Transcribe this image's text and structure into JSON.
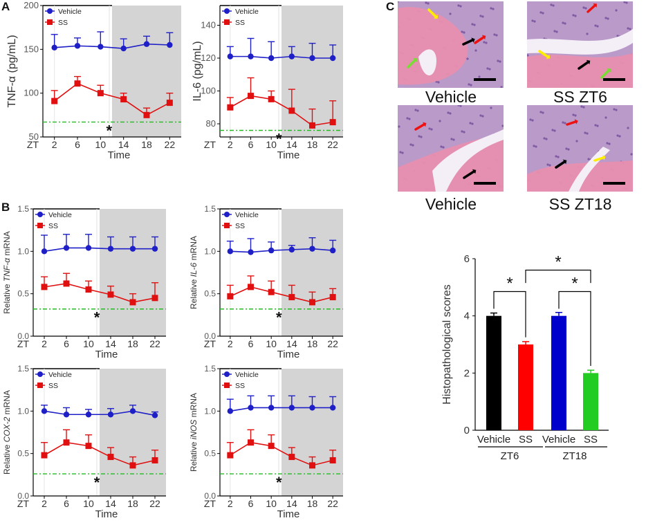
{
  "panels": {
    "A": "A",
    "B": "B",
    "C": "C"
  },
  "colors": {
    "vehicle": "#1f1fc8",
    "ss": "#e01010",
    "dark_shade": "#d4d4d4",
    "refline": "#22bb22",
    "bar_black": "#000000",
    "bar_red": "#ff0000",
    "bar_blue": "#0000cc",
    "bar_green": "#22cc22"
  },
  "legend": {
    "vehicle": "Vehicle",
    "ss": "SS"
  },
  "x_prefix": "ZT",
  "x_label": "Time",
  "x_ticks": [
    "2",
    "6",
    "10",
    "14",
    "18",
    "22"
  ],
  "star": "*",
  "histology": {
    "images": [
      {
        "label": "Vehicle",
        "arrows": [
          "yellow",
          "black",
          "red",
          "green"
        ]
      },
      {
        "label": "SS ZT6",
        "arrows": [
          "red",
          "yellow",
          "black",
          "green"
        ]
      },
      {
        "label": "Vehicle",
        "arrows": [
          "red",
          "black"
        ]
      },
      {
        "label": "SS ZT18",
        "arrows": [
          "red",
          "black",
          "yellow"
        ]
      }
    ]
  },
  "chart_data": [
    {
      "id": "tnf-protein",
      "type": "line",
      "ylabel": "TNF-α (pg/mL)",
      "ylim": [
        50,
        200
      ],
      "yticks": [
        "50",
        "100",
        "150",
        "200"
      ],
      "yticks_values": [
        50,
        100,
        150,
        200
      ],
      "dark_phase": [
        12,
        24
      ],
      "reference_line": 67,
      "x": [
        2,
        6,
        10,
        14,
        18,
        22
      ],
      "series": [
        {
          "name": "Vehicle",
          "values": [
            152,
            154,
            153,
            151,
            156,
            155
          ],
          "errors": [
            15,
            9,
            17,
            11,
            9,
            14
          ]
        },
        {
          "name": "SS",
          "values": [
            91,
            111,
            100,
            93,
            75,
            89
          ],
          "errors": [
            12,
            8,
            9,
            7,
            8,
            11
          ]
        }
      ]
    },
    {
      "id": "il6-protein",
      "type": "line",
      "ylabel": "IL-6 (pg/mL)",
      "ylim": [
        72,
        152
      ],
      "yticks": [
        "80",
        "100",
        "120",
        "140"
      ],
      "yticks_values": [
        80,
        100,
        120,
        140
      ],
      "dark_phase": [
        12,
        24
      ],
      "reference_line": 76,
      "x": [
        2,
        6,
        10,
        14,
        18,
        22
      ],
      "series": [
        {
          "name": "Vehicle",
          "values": [
            121,
            121,
            120,
            121,
            120,
            120
          ],
          "errors": [
            6,
            11,
            10,
            6,
            9,
            8
          ]
        },
        {
          "name": "SS",
          "values": [
            90,
            97,
            95,
            88,
            79,
            81
          ],
          "errors": [
            6,
            11,
            5,
            13,
            10,
            13
          ]
        }
      ]
    },
    {
      "id": "tnf-mrna",
      "type": "line",
      "ylabel_prefix": "Relative ",
      "ylabel_gene": "TNF-α",
      "ylabel_suffix": " mRNA",
      "ylim": [
        0,
        1.5
      ],
      "yticks": [
        "0.0",
        "0.5",
        "1.0",
        "1.5"
      ],
      "yticks_values": [
        0,
        0.5,
        1.0,
        1.5
      ],
      "dark_phase": [
        12,
        24
      ],
      "reference_line": 0.32,
      "x": [
        2,
        6,
        10,
        14,
        18,
        22
      ],
      "series": [
        {
          "name": "Vehicle",
          "values": [
            1.0,
            1.04,
            1.04,
            1.03,
            1.03,
            1.03
          ],
          "errors": [
            0.19,
            0.16,
            0.16,
            0.14,
            0.14,
            0.14
          ]
        },
        {
          "name": "SS",
          "values": [
            0.58,
            0.62,
            0.55,
            0.49,
            0.4,
            0.45
          ],
          "errors": [
            0.12,
            0.12,
            0.1,
            0.1,
            0.1,
            0.18
          ]
        }
      ]
    },
    {
      "id": "il6-mrna",
      "type": "line",
      "ylabel_prefix": "Relative ",
      "ylabel_gene": "IL-6",
      "ylabel_suffix": " mRNA",
      "ylim": [
        0,
        1.5
      ],
      "yticks": [
        "0.0",
        "0.5",
        "1.0",
        "1.5"
      ],
      "yticks_values": [
        0,
        0.5,
        1.0,
        1.5
      ],
      "dark_phase": [
        12,
        24
      ],
      "reference_line": 0.32,
      "x": [
        2,
        6,
        10,
        14,
        18,
        22
      ],
      "series": [
        {
          "name": "Vehicle",
          "values": [
            1.0,
            0.99,
            1.01,
            1.02,
            1.03,
            1.01
          ],
          "errors": [
            0.12,
            0.16,
            0.1,
            0.05,
            0.13,
            0.12
          ]
        },
        {
          "name": "SS",
          "values": [
            0.47,
            0.58,
            0.52,
            0.46,
            0.4,
            0.46
          ],
          "errors": [
            0.13,
            0.13,
            0.13,
            0.14,
            0.12,
            0.1
          ]
        }
      ]
    },
    {
      "id": "cox2-mrna",
      "type": "line",
      "ylabel_prefix": "Relative ",
      "ylabel_gene": "COX-2",
      "ylabel_suffix": " mRNA",
      "ylim": [
        0,
        1.5
      ],
      "yticks": [
        "0.0",
        "0.5",
        "1.0",
        "1.5"
      ],
      "yticks_values": [
        0,
        0.5,
        1.0,
        1.5
      ],
      "dark_phase": [
        12,
        24
      ],
      "reference_line": 0.26,
      "x": [
        2,
        6,
        10,
        14,
        18,
        22
      ],
      "series": [
        {
          "name": "Vehicle",
          "values": [
            1.0,
            0.96,
            0.96,
            0.96,
            1.0,
            0.95
          ],
          "errors": [
            0.07,
            0.08,
            0.06,
            0.07,
            0.07,
            0.04
          ]
        },
        {
          "name": "SS",
          "values": [
            0.48,
            0.63,
            0.59,
            0.46,
            0.36,
            0.42
          ],
          "errors": [
            0.15,
            0.15,
            0.13,
            0.11,
            0.1,
            0.12
          ]
        }
      ]
    },
    {
      "id": "inos-mrna",
      "type": "line",
      "ylabel_prefix": "Relative ",
      "ylabel_gene": "iNOS",
      "ylabel_suffix": " mRNA",
      "ylim": [
        0,
        1.5
      ],
      "yticks": [
        "0.0",
        "0.5",
        "1.0",
        "1.5"
      ],
      "yticks_values": [
        0,
        0.5,
        1.0,
        1.5
      ],
      "dark_phase": [
        12,
        24
      ],
      "reference_line": 0.26,
      "x": [
        2,
        6,
        10,
        14,
        18,
        22
      ],
      "series": [
        {
          "name": "Vehicle",
          "values": [
            1.0,
            1.04,
            1.04,
            1.04,
            1.04,
            1.04
          ],
          "errors": [
            0.14,
            0.14,
            0.14,
            0.14,
            0.13,
            0.13
          ]
        },
        {
          "name": "SS",
          "values": [
            0.48,
            0.63,
            0.59,
            0.46,
            0.36,
            0.42
          ],
          "errors": [
            0.15,
            0.15,
            0.13,
            0.11,
            0.1,
            0.12
          ]
        }
      ]
    },
    {
      "id": "histo-scores",
      "type": "bar",
      "ylabel": "Histopathological scores",
      "ylim": [
        0,
        6
      ],
      "yticks": [
        "0",
        "2",
        "4",
        "6"
      ],
      "yticks_values": [
        0,
        2,
        4,
        6
      ],
      "categories": [
        "Vehicle",
        "SS",
        "Vehicle",
        "SS"
      ],
      "groups": [
        "ZT6",
        "ZT18"
      ],
      "values": [
        4.0,
        3.0,
        4.0,
        2.0
      ],
      "errors": [
        0.1,
        0.1,
        0.12,
        0.1
      ],
      "significance": [
        "*",
        "*",
        "*"
      ]
    }
  ]
}
